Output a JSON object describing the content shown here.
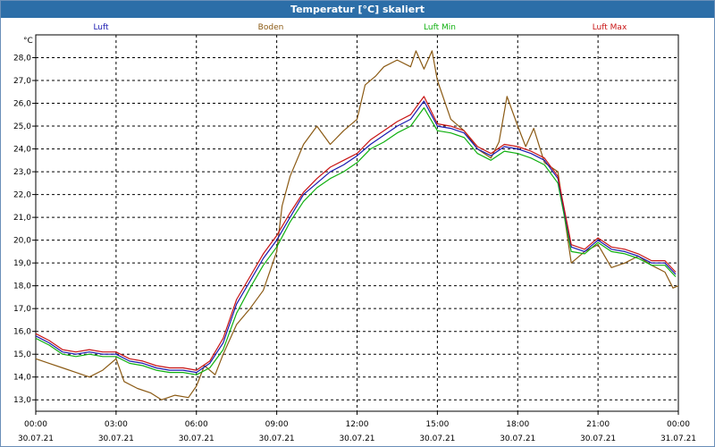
{
  "window": {
    "title": "Temperatur [°C] skaliert"
  },
  "chart_data": {
    "type": "line",
    "title": "Temperatur [°C] skaliert",
    "ylabel": "°C",
    "xlabel": "",
    "ylim": [
      12.5,
      29.0
    ],
    "xlim": [
      0,
      24
    ],
    "grid": true,
    "legend_position": "top",
    "y_ticks": [
      "13,0",
      "14,0",
      "15,0",
      "16,0",
      "17,0",
      "18,0",
      "19,0",
      "20,0",
      "21,0",
      "22,0",
      "23,0",
      "24,0",
      "25,0",
      "26,0",
      "27,0",
      "28,0"
    ],
    "x_ticks": [
      {
        "time": "00:00",
        "date": "30.07.21"
      },
      {
        "time": "03:00",
        "date": "30.07.21"
      },
      {
        "time": "06:00",
        "date": "30.07.21"
      },
      {
        "time": "09:00",
        "date": "30.07.21"
      },
      {
        "time": "12:00",
        "date": "30.07.21"
      },
      {
        "time": "15:00",
        "date": "30.07.21"
      },
      {
        "time": "18:00",
        "date": "30.07.21"
      },
      {
        "time": "21:00",
        "date": "30.07.21"
      },
      {
        "time": "00:00",
        "date": "31.07.21"
      }
    ],
    "series": [
      {
        "name": "Luft",
        "color": "#1a1ab0",
        "points": [
          [
            0,
            15.8
          ],
          [
            0.5,
            15.5
          ],
          [
            1,
            15.1
          ],
          [
            1.5,
            15.0
          ],
          [
            2,
            15.1
          ],
          [
            2.5,
            15.0
          ],
          [
            3,
            15.0
          ],
          [
            3.5,
            14.7
          ],
          [
            4,
            14.6
          ],
          [
            4.5,
            14.4
          ],
          [
            5,
            14.3
          ],
          [
            5.5,
            14.3
          ],
          [
            6,
            14.2
          ],
          [
            6.5,
            14.6
          ],
          [
            7,
            15.5
          ],
          [
            7.5,
            17.2
          ],
          [
            8,
            18.2
          ],
          [
            8.5,
            19.2
          ],
          [
            9,
            20.0
          ],
          [
            9.5,
            21.0
          ],
          [
            10,
            22.0
          ],
          [
            10.5,
            22.5
          ],
          [
            11,
            23.0
          ],
          [
            11.5,
            23.3
          ],
          [
            12,
            23.7
          ],
          [
            12.5,
            24.2
          ],
          [
            13,
            24.6
          ],
          [
            13.5,
            25.0
          ],
          [
            14,
            25.3
          ],
          [
            14.5,
            26.1
          ],
          [
            15,
            25.0
          ],
          [
            15.5,
            24.9
          ],
          [
            16,
            24.7
          ],
          [
            16.5,
            24.0
          ],
          [
            17,
            23.7
          ],
          [
            17.5,
            24.1
          ],
          [
            18,
            24.0
          ],
          [
            18.5,
            23.8
          ],
          [
            19,
            23.5
          ],
          [
            19.5,
            22.7
          ],
          [
            20,
            19.7
          ],
          [
            20.5,
            19.5
          ],
          [
            21,
            20.0
          ],
          [
            21.5,
            19.6
          ],
          [
            22,
            19.5
          ],
          [
            22.5,
            19.3
          ],
          [
            23,
            19.0
          ],
          [
            23.5,
            19.0
          ],
          [
            23.9,
            18.5
          ]
        ]
      },
      {
        "name": "Boden",
        "color": "#8b5a14",
        "points": [
          [
            0,
            14.8
          ],
          [
            0.5,
            14.6
          ],
          [
            1,
            14.4
          ],
          [
            1.5,
            14.2
          ],
          [
            2,
            14.0
          ],
          [
            2.5,
            14.3
          ],
          [
            3,
            14.8
          ],
          [
            3.3,
            13.8
          ],
          [
            3.8,
            13.5
          ],
          [
            4.3,
            13.3
          ],
          [
            4.7,
            13.0
          ],
          [
            5.2,
            13.2
          ],
          [
            5.7,
            13.1
          ],
          [
            6,
            13.6
          ],
          [
            6.3,
            14.5
          ],
          [
            6.7,
            14.1
          ],
          [
            7,
            15.0
          ],
          [
            7.5,
            16.3
          ],
          [
            8,
            17.0
          ],
          [
            8.5,
            17.8
          ],
          [
            9,
            19.5
          ],
          [
            9.2,
            21.5
          ],
          [
            9.5,
            22.8
          ],
          [
            10,
            24.2
          ],
          [
            10.5,
            25.0
          ],
          [
            11,
            24.2
          ],
          [
            11.5,
            24.8
          ],
          [
            12,
            25.3
          ],
          [
            12.3,
            26.8
          ],
          [
            12.7,
            27.2
          ],
          [
            13,
            27.6
          ],
          [
            13.5,
            27.9
          ],
          [
            14,
            27.6
          ],
          [
            14.2,
            28.3
          ],
          [
            14.5,
            27.5
          ],
          [
            14.8,
            28.3
          ],
          [
            15,
            27.0
          ],
          [
            15.5,
            25.3
          ],
          [
            16,
            24.8
          ],
          [
            16.5,
            24.0
          ],
          [
            17,
            23.6
          ],
          [
            17.3,
            24.3
          ],
          [
            17.6,
            26.3
          ],
          [
            18,
            25.0
          ],
          [
            18.3,
            24.1
          ],
          [
            18.6,
            24.9
          ],
          [
            19,
            23.4
          ],
          [
            19.5,
            23.0
          ],
          [
            20,
            19.0
          ],
          [
            20.5,
            19.5
          ],
          [
            21,
            19.8
          ],
          [
            21.5,
            18.8
          ],
          [
            22,
            19.0
          ],
          [
            22.5,
            19.3
          ],
          [
            23,
            18.9
          ],
          [
            23.5,
            18.6
          ],
          [
            23.8,
            17.9
          ],
          [
            24,
            18.0
          ]
        ]
      },
      {
        "name": "Luft Min",
        "color": "#10b010",
        "points": [
          [
            0,
            15.7
          ],
          [
            0.5,
            15.4
          ],
          [
            1,
            15.0
          ],
          [
            1.5,
            14.9
          ],
          [
            2,
            15.0
          ],
          [
            2.5,
            14.9
          ],
          [
            3,
            14.9
          ],
          [
            3.5,
            14.6
          ],
          [
            4,
            14.5
          ],
          [
            4.5,
            14.3
          ],
          [
            5,
            14.2
          ],
          [
            5.5,
            14.2
          ],
          [
            6,
            14.1
          ],
          [
            6.5,
            14.4
          ],
          [
            7,
            15.2
          ],
          [
            7.5,
            16.8
          ],
          [
            8,
            17.9
          ],
          [
            8.5,
            18.9
          ],
          [
            9,
            19.7
          ],
          [
            9.5,
            20.8
          ],
          [
            10,
            21.7
          ],
          [
            10.5,
            22.3
          ],
          [
            11,
            22.7
          ],
          [
            11.5,
            23.0
          ],
          [
            12,
            23.4
          ],
          [
            12.5,
            24.0
          ],
          [
            13,
            24.3
          ],
          [
            13.5,
            24.7
          ],
          [
            14,
            25.0
          ],
          [
            14.5,
            25.8
          ],
          [
            15,
            24.8
          ],
          [
            15.5,
            24.7
          ],
          [
            16,
            24.5
          ],
          [
            16.5,
            23.8
          ],
          [
            17,
            23.5
          ],
          [
            17.5,
            23.9
          ],
          [
            18,
            23.8
          ],
          [
            18.5,
            23.6
          ],
          [
            19,
            23.3
          ],
          [
            19.5,
            22.5
          ],
          [
            20,
            19.5
          ],
          [
            20.5,
            19.4
          ],
          [
            21,
            19.9
          ],
          [
            21.5,
            19.5
          ],
          [
            22,
            19.4
          ],
          [
            22.5,
            19.2
          ],
          [
            23,
            18.9
          ],
          [
            23.5,
            18.9
          ],
          [
            23.9,
            18.4
          ]
        ]
      },
      {
        "name": "Luft Max",
        "color": "#c81414",
        "points": [
          [
            0,
            15.9
          ],
          [
            0.5,
            15.6
          ],
          [
            1,
            15.2
          ],
          [
            1.5,
            15.1
          ],
          [
            2,
            15.2
          ],
          [
            2.5,
            15.1
          ],
          [
            3,
            15.1
          ],
          [
            3.5,
            14.8
          ],
          [
            4,
            14.7
          ],
          [
            4.5,
            14.5
          ],
          [
            5,
            14.4
          ],
          [
            5.5,
            14.4
          ],
          [
            6,
            14.3
          ],
          [
            6.5,
            14.7
          ],
          [
            7,
            15.7
          ],
          [
            7.5,
            17.4
          ],
          [
            8,
            18.4
          ],
          [
            8.5,
            19.4
          ],
          [
            9,
            20.2
          ],
          [
            9.5,
            21.2
          ],
          [
            10,
            22.1
          ],
          [
            10.5,
            22.7
          ],
          [
            11,
            23.2
          ],
          [
            11.5,
            23.5
          ],
          [
            12,
            23.8
          ],
          [
            12.5,
            24.4
          ],
          [
            13,
            24.8
          ],
          [
            13.5,
            25.2
          ],
          [
            14,
            25.5
          ],
          [
            14.5,
            26.3
          ],
          [
            15,
            25.1
          ],
          [
            15.5,
            25.0
          ],
          [
            16,
            24.8
          ],
          [
            16.5,
            24.1
          ],
          [
            17,
            23.8
          ],
          [
            17.5,
            24.2
          ],
          [
            18,
            24.1
          ],
          [
            18.5,
            23.9
          ],
          [
            19,
            23.6
          ],
          [
            19.5,
            22.8
          ],
          [
            20,
            19.8
          ],
          [
            20.5,
            19.6
          ],
          [
            21,
            20.1
          ],
          [
            21.5,
            19.7
          ],
          [
            22,
            19.6
          ],
          [
            22.5,
            19.4
          ],
          [
            23,
            19.1
          ],
          [
            23.5,
            19.1
          ],
          [
            23.9,
            18.6
          ]
        ]
      }
    ]
  }
}
